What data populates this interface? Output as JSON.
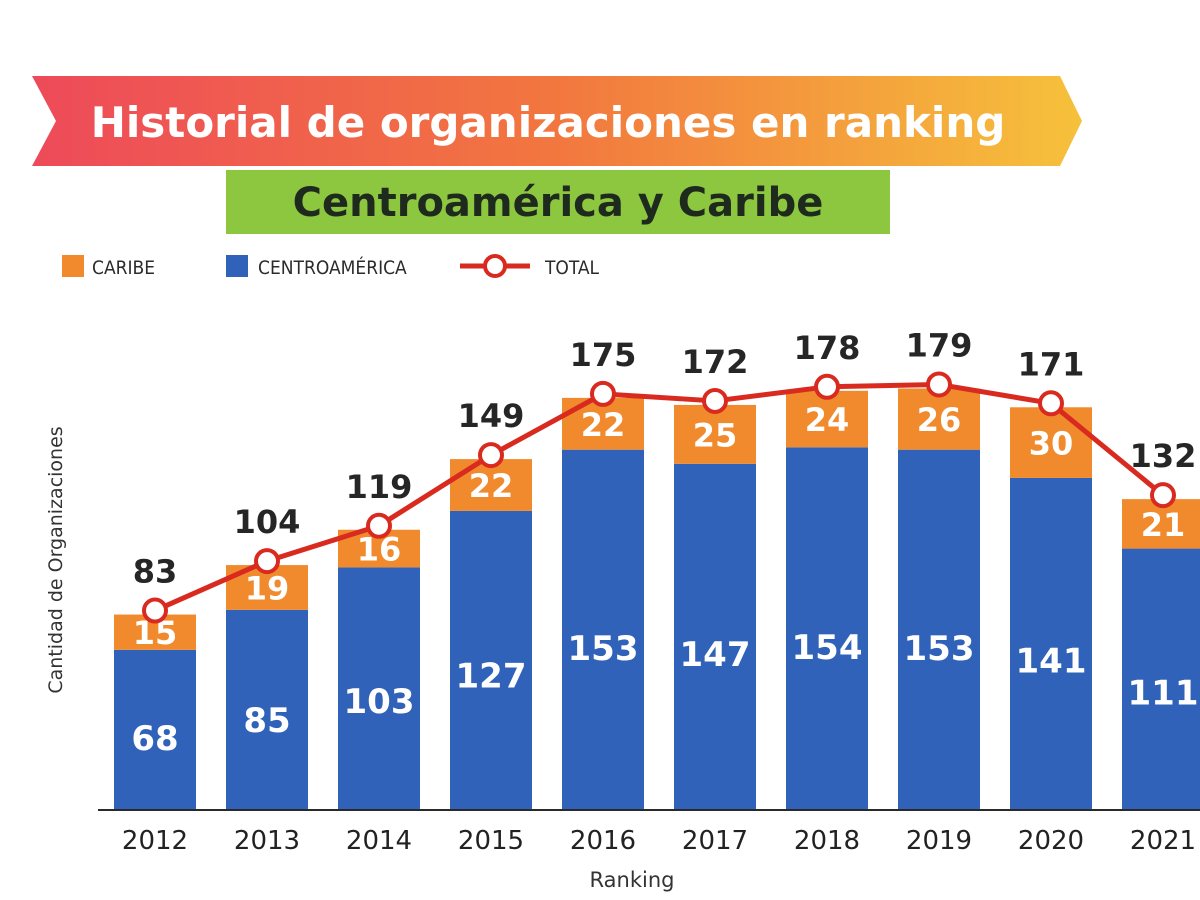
{
  "title": "Historial de organizaciones en ranking",
  "subtitle": "Centroamérica y Caribe",
  "colors": {
    "caribe": "#f08a2c",
    "centroamerica": "#2f62b8",
    "total": "#d92a20",
    "subtitle_bg": "#8dc63f"
  },
  "chart_data": {
    "type": "bar",
    "stacked": true,
    "title": "Historial de organizaciones en ranking",
    "subtitle": "Centroamérica y Caribe",
    "xlabel": "Ranking",
    "ylabel": "Cantidad de Organizaciones",
    "categories": [
      "2012",
      "2013",
      "2014",
      "2015",
      "2016",
      "2017",
      "2018",
      "2019",
      "2020",
      "2021"
    ],
    "legend": [
      "CARIBE",
      "CENTROAMÉRICA",
      "TOTAL"
    ],
    "legend_position": "top-left",
    "series": [
      {
        "name": "CENTROAMÉRICA",
        "values": [
          68,
          85,
          103,
          127,
          153,
          147,
          154,
          153,
          141,
          111
        ]
      },
      {
        "name": "CARIBE",
        "values": [
          15,
          19,
          16,
          22,
          22,
          25,
          24,
          26,
          30,
          21
        ]
      }
    ],
    "total": {
      "name": "TOTAL",
      "values": [
        83,
        104,
        119,
        149,
        175,
        172,
        178,
        179,
        171,
        132
      ]
    },
    "ylim": [
      0,
      180
    ],
    "grid": false
  }
}
